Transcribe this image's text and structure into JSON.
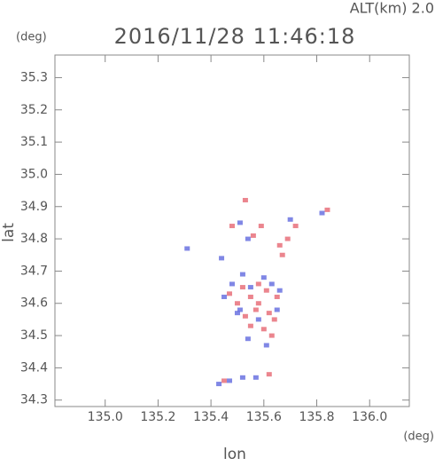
{
  "chart_data": {
    "type": "scatter",
    "title": "2016/11/28 11:46:18",
    "subtitle": "ALT(km) 2.0",
    "y_unit": "(deg)",
    "x_unit": "(deg)",
    "x_label": "lon",
    "y_label": "lat",
    "xlim": [
      134.81,
      136.15
    ],
    "ylim": [
      34.28,
      35.37
    ],
    "xticks": [
      {
        "value": 135,
        "label": "135.0"
      },
      135.2,
      135.4,
      135.6,
      135.8,
      {
        "value": 136,
        "label": "136.0"
      }
    ],
    "yticks": [
      34.3,
      34.4,
      34.5,
      34.6,
      34.7,
      34.8,
      34.9,
      {
        "value": 35,
        "label": "35.0"
      },
      35.1,
      35.2,
      35.3
    ],
    "series": [
      {
        "color": "#e8707a",
        "x": [
          135.53,
          135.59,
          135.66,
          135.69,
          135.72,
          135.67,
          135.84,
          135.48,
          135.56,
          135.58,
          135.61,
          135.55,
          135.5,
          135.57,
          135.62,
          135.53,
          135.6,
          135.63,
          135.55,
          135.58,
          135.65,
          135.47,
          135.52,
          135.64,
          135.45,
          135.62
        ],
        "values": [
          34.92,
          34.84,
          34.78,
          34.8,
          34.84,
          34.75,
          34.89,
          34.84,
          34.81,
          34.66,
          34.64,
          34.62,
          34.6,
          34.58,
          34.57,
          34.56,
          34.52,
          34.5,
          34.53,
          34.6,
          34.62,
          34.63,
          34.65,
          34.55,
          34.36,
          34.38
        ]
      },
      {
        "color": "#6a72e0",
        "x": [
          135.51,
          135.54,
          135.7,
          135.82,
          135.31,
          135.44,
          135.6,
          135.52,
          135.48,
          135.55,
          135.63,
          135.66,
          135.45,
          135.5,
          135.58,
          135.54,
          135.61,
          135.51,
          135.65,
          135.43,
          135.47,
          135.52,
          135.57
        ],
        "values": [
          34.85,
          34.8,
          34.86,
          34.88,
          34.77,
          34.74,
          34.68,
          34.69,
          34.66,
          34.65,
          34.66,
          34.64,
          34.62,
          34.57,
          34.55,
          34.49,
          34.47,
          34.58,
          34.58,
          34.35,
          34.36,
          34.37,
          34.37
        ]
      }
    ]
  }
}
